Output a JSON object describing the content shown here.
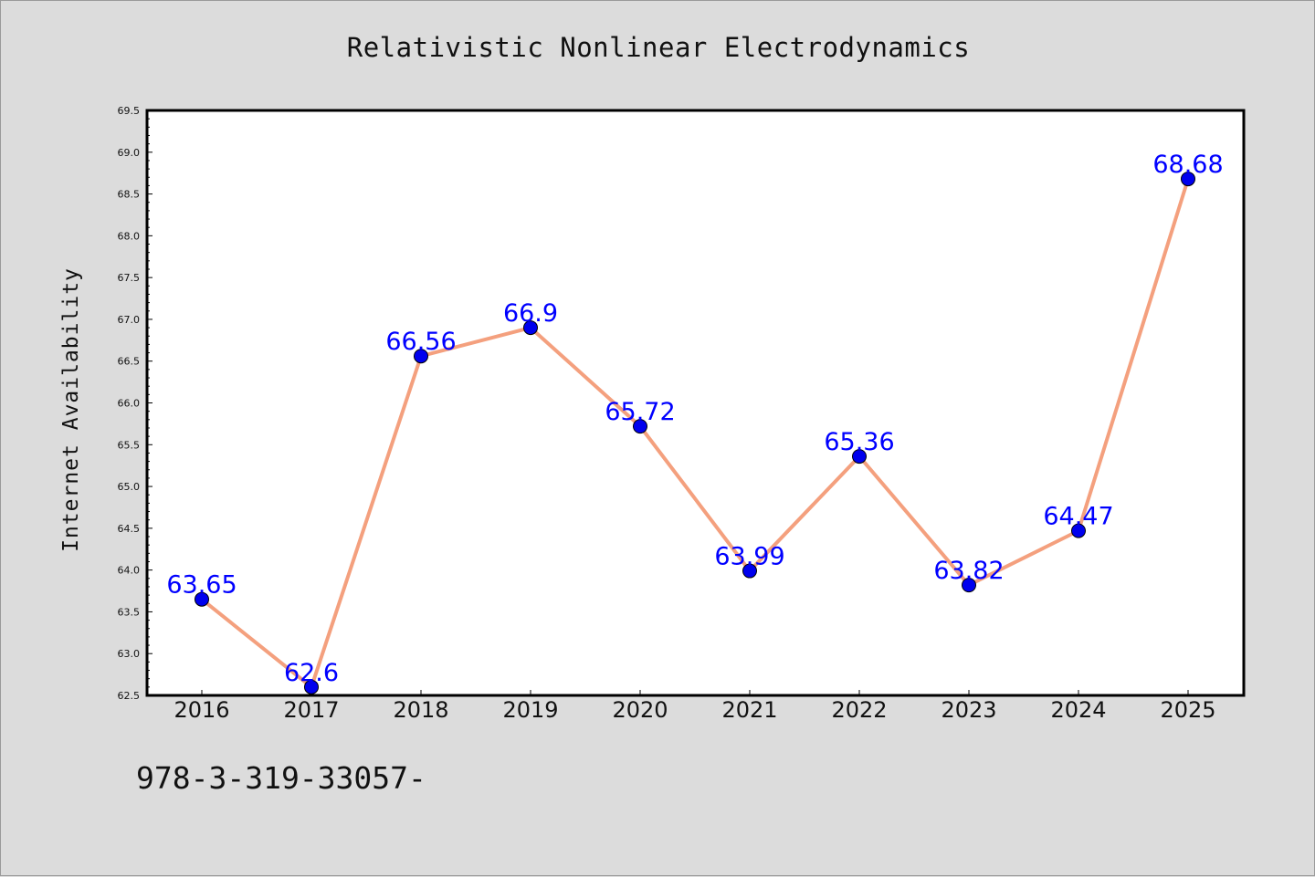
{
  "chart_data": {
    "type": "line",
    "title": "Relativistic Nonlinear Electrodynamics",
    "xlabel": "",
    "ylabel": "Internet Availability",
    "categories": [
      "2016",
      "2017",
      "2018",
      "2019",
      "2020",
      "2021",
      "2022",
      "2023",
      "2024",
      "2025"
    ],
    "series": [
      {
        "values": [
          63.65,
          62.6,
          66.56,
          66.9,
          65.72,
          63.99,
          65.36,
          63.82,
          64.47,
          68.68
        ],
        "data_labels": [
          "63.65",
          "62.6",
          "66.56",
          "66.9",
          "65.72",
          "63.99",
          "65.36",
          "63.82",
          "64.47",
          "68.68"
        ],
        "line_color": "#f4a07e",
        "marker_color": "#0000ee"
      }
    ],
    "ylim": [
      62.5,
      69.5
    ],
    "yticks": [
      "62.5",
      "63.0",
      "63.5",
      "64.0",
      "64.5",
      "65.0",
      "65.5",
      "66.0",
      "66.5",
      "67.0",
      "67.5",
      "68.0",
      "68.5",
      "69.0",
      "69.5"
    ],
    "grid": false,
    "legend": "none"
  },
  "footer_text": "978-3-319-33057-",
  "colors": {
    "background": "#dcdcdc",
    "plot_area": "#ffffff",
    "label_color": "#0000ff"
  }
}
